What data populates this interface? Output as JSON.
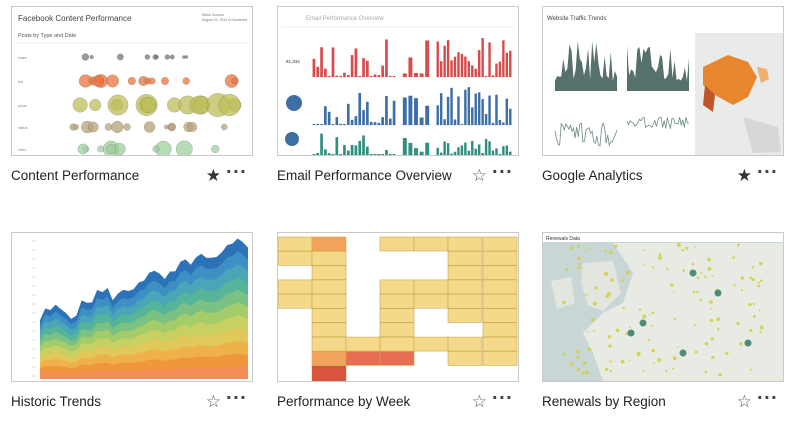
{
  "cards": [
    {
      "title": "Content Performance",
      "favorited": true,
      "thumb": {
        "heading": "Facebook Content Performance",
        "subheading": "Posts by Type and Date",
        "row_labels": [
          "share",
          "link",
          "photo",
          "status",
          "video"
        ]
      }
    },
    {
      "title": "Email Performance Overview",
      "favorited": false,
      "thumb": {
        "heading": "Email Performance Overview",
        "kpi": "81,334"
      }
    },
    {
      "title": "Google Analytics",
      "favorited": true,
      "thumb": {
        "heading": "Website Traffic Trends"
      }
    },
    {
      "title": "Historic Trends",
      "favorited": false,
      "thumb": {}
    },
    {
      "title": "Performance by Week",
      "favorited": false,
      "thumb": {}
    },
    {
      "title": "Renewals by Region",
      "favorited": false,
      "thumb": {
        "heading": "Renewals Data"
      }
    }
  ],
  "icons": {
    "star_filled": "★",
    "star_empty": "☆",
    "more": "···"
  },
  "colors": {
    "orange": "#e8743b",
    "olive": "#bdbd5a",
    "red": "#d84b4b",
    "blue": "#3b6fa5",
    "teal": "#2f8f7f",
    "slate": "#56706b",
    "map_orange": "#e8852f",
    "heat_yellow": "#f5d98a",
    "heat_red": "#d9543c"
  }
}
